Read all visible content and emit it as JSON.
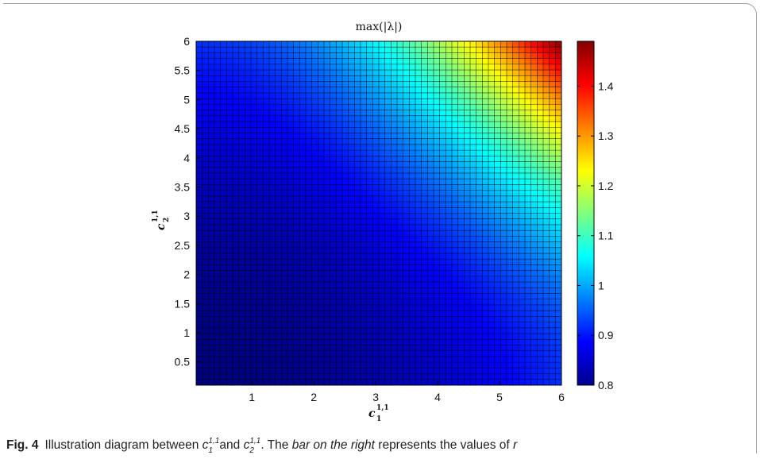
{
  "chart_data": {
    "type": "heatmap",
    "title": "max(|λ|)",
    "xlabel": "c",
    "xlabel_sub": "1",
    "xlabel_sup": "1,1",
    "ylabel": "c",
    "ylabel_sub": "2",
    "ylabel_sup": "1,1",
    "xlim": [
      0.1,
      6.0
    ],
    "ylim": [
      0.1,
      6.0
    ],
    "x_ticks": [
      "1",
      "2",
      "3",
      "4",
      "5",
      "6"
    ],
    "y_ticks": [
      "0.5",
      "1",
      "1.5",
      "2",
      "2.5",
      "3",
      "3.5",
      "4",
      "4.5",
      "5",
      "5.5",
      "6"
    ],
    "grid_cells": [
      60,
      60
    ],
    "grid_lines": true,
    "colormap": "jet",
    "colorbar": {
      "range": [
        0.8,
        1.49
      ],
      "ticks": [
        "0.8",
        "0.9",
        "1",
        "1.1",
        "1.2",
        "1.3",
        "1.4"
      ],
      "placement": "right"
    },
    "sample_values": [
      {
        "x": 0.1,
        "y": 0.1,
        "value": 0.8
      },
      {
        "x": 6.0,
        "y": 0.1,
        "value": 0.92
      },
      {
        "x": 0.1,
        "y": 6.0,
        "value": 0.92
      },
      {
        "x": 3.0,
        "y": 3.0,
        "value": 0.93
      },
      {
        "x": 4.0,
        "y": 4.0,
        "value": 1.06
      },
      {
        "x": 5.0,
        "y": 5.0,
        "value": 1.25
      },
      {
        "x": 6.0,
        "y": 6.0,
        "value": 1.49
      }
    ]
  },
  "caption": {
    "fig_label": "Fig. 4",
    "text_before": "Illustration diagram between",
    "var_base": "c",
    "var_sup": "1,1",
    "var1_sub": "1",
    "text_and": "and",
    "var2_sub": "2",
    "text_mid": ". The",
    "emph": "bar on the right",
    "text_after": "represents the values of",
    "var_r": "r"
  }
}
